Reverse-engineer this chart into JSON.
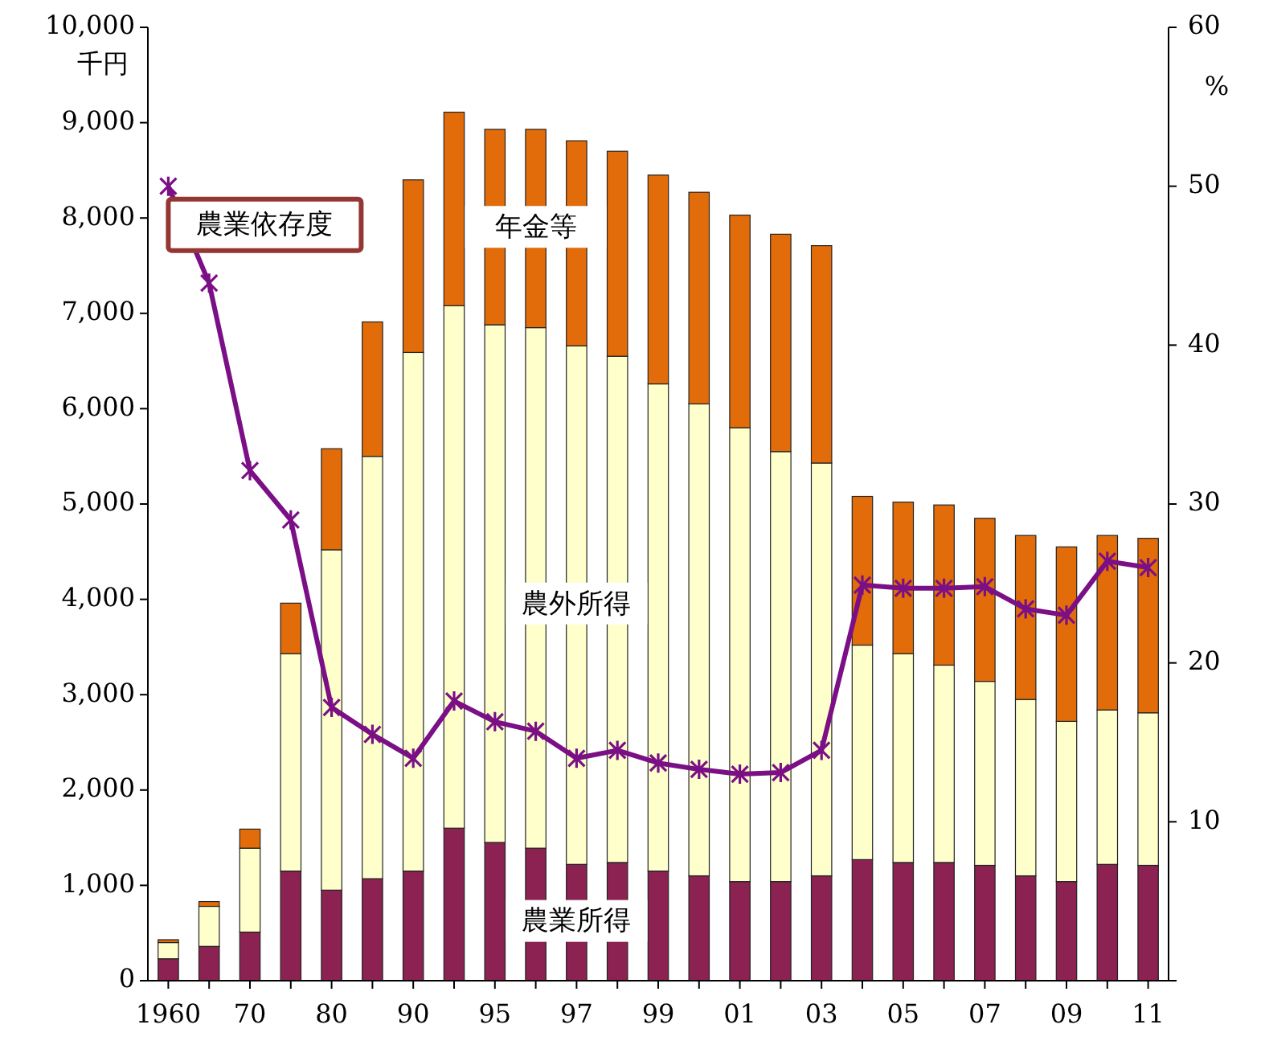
{
  "chart_data": {
    "type": "bar",
    "stacked": true,
    "ylabel": "千円",
    "y2label": "%",
    "categories": [
      "1960",
      null,
      "70",
      null,
      "80",
      null,
      "90",
      null,
      "95",
      null,
      "97",
      null,
      "99",
      null,
      "01",
      null,
      "03",
      null,
      "05",
      null,
      "07",
      null,
      "09",
      null,
      "11"
    ],
    "series": [
      {
        "name": "農業所得",
        "color": "#8b2252",
        "values": [
          230,
          360,
          510,
          1150,
          950,
          1070,
          1150,
          1600,
          1450,
          1390,
          1220,
          1240,
          1150,
          1100,
          1040,
          1040,
          1100,
          1270,
          1240,
          1240,
          1210,
          1100,
          1040,
          1220,
          1210
        ]
      },
      {
        "name": "農外所得",
        "color": "#ffffcc",
        "values": [
          170,
          420,
          880,
          2280,
          3570,
          4430,
          5440,
          5480,
          5430,
          5460,
          5440,
          5310,
          5110,
          4950,
          4760,
          4510,
          4330,
          2250,
          2190,
          2070,
          1930,
          1850,
          1680,
          1620,
          1600
        ]
      },
      {
        "name": "年金等",
        "color": "#e36c0a",
        "values": [
          30,
          50,
          200,
          530,
          1060,
          1410,
          1810,
          2030,
          2050,
          2080,
          2150,
          2150,
          2190,
          2220,
          2230,
          2280,
          2280,
          1560,
          1590,
          1680,
          1710,
          1720,
          1830,
          1830,
          1830
        ]
      },
      {
        "name": "農業依存度",
        "type": "line",
        "axis": "y2",
        "color": "#7b0f86",
        "marker": "cross",
        "values": [
          50,
          43.9,
          32.1,
          29,
          17.2,
          15.5,
          14,
          17.6,
          16.3,
          15.7,
          14,
          14.5,
          13.7,
          13.3,
          13,
          13.1,
          14.5,
          24.9,
          24.7,
          24.7,
          24.8,
          23.4,
          23,
          26.4,
          26
        ]
      }
    ],
    "ylim": [
      0,
      10000
    ],
    "yticks": [
      0,
      {
        "value": 1000,
        "label": "1,000"
      },
      {
        "value": 2000,
        "label": "2,000"
      },
      {
        "value": 3000,
        "label": "3,000"
      },
      {
        "value": 4000,
        "label": "4,000"
      },
      {
        "value": 5000,
        "label": "5,000"
      },
      {
        "value": 6000,
        "label": "6,000"
      },
      {
        "value": 7000,
        "label": "7,000"
      },
      {
        "value": 8000,
        "label": "8,000"
      },
      {
        "value": 9000,
        "label": "9,000"
      },
      {
        "value": 10000,
        "label": "10,000"
      }
    ],
    "y2lim": [
      0,
      60
    ],
    "y2ticks": [
      {
        "value": 0,
        "label": null
      },
      10,
      20,
      30,
      40,
      50,
      60
    ],
    "grid": false
  }
}
